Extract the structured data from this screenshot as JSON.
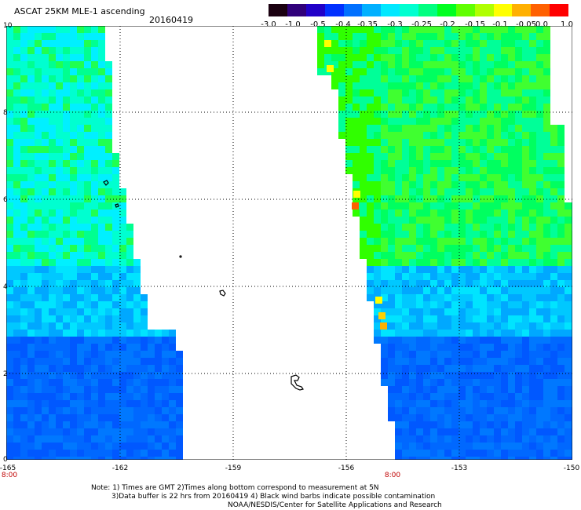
{
  "header": {
    "title": "ASCAT 25KM MLE-1 ascending",
    "date": "20160419"
  },
  "colorbar": {
    "colors": [
      "#1a0010",
      "#30007a",
      "#2000c8",
      "#0030ff",
      "#0070ff",
      "#00b0ff",
      "#00e8ff",
      "#00ffd0",
      "#00ff80",
      "#00ff20",
      "#60ff00",
      "#b0ff00",
      "#ffff00",
      "#ffb000",
      "#ff6000",
      "#ff0000"
    ],
    "labels": [
      "-3.0",
      "-1.0",
      "-0.5",
      "-0.4",
      "-0.35",
      "-0.3",
      "-0.25",
      "-0.2",
      "-0.15",
      "-0.1",
      "-0.05",
      "0.0",
      "1.0"
    ]
  },
  "axes": {
    "y_labels": [
      "10",
      "8",
      "6",
      "4",
      "2",
      "0"
    ],
    "x_labels": [
      "-165",
      "-162",
      "-159",
      "-156",
      "-153",
      "-150"
    ],
    "time_labels": [
      "8:00",
      "8:00"
    ]
  },
  "notes": {
    "line1": "Note: 1) Times are GMT 2)Times along bottom correspond to measurement at 5N",
    "line2": "3)Data buffer is 22 hrs from 20160419 4) Black wind barbs indicate possible contamination",
    "line3": "NOAA/NESDIS/Center for Satellite Applications and Research"
  }
}
